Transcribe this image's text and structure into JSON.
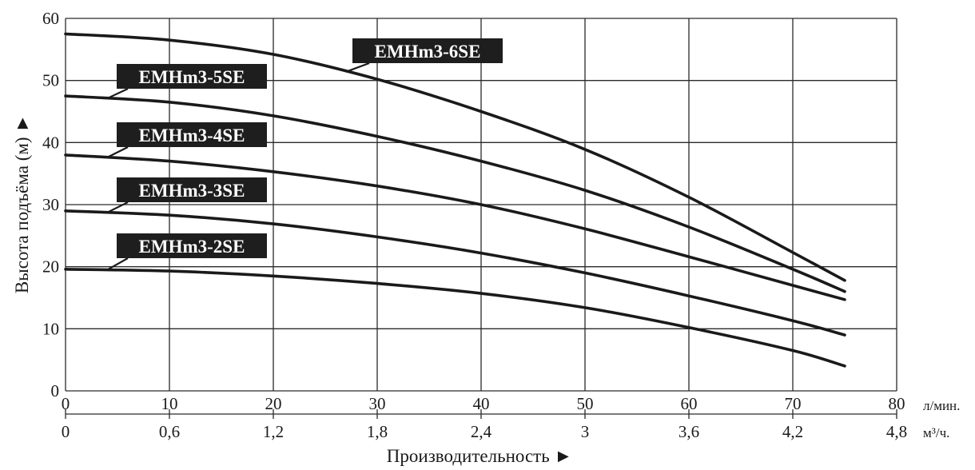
{
  "chart_data": {
    "type": "line",
    "ylabel": "Высота подъёма (м) ►",
    "xlabel": "Производительность ►",
    "x_unit_primary": "л/мин.",
    "x_unit_secondary": "м³/ч.",
    "xlim": [
      0,
      80
    ],
    "ylim": [
      0,
      60
    ],
    "grid": true,
    "x_ticks": [
      "0",
      "10",
      "20",
      "30",
      "40",
      "50",
      "60",
      "70",
      "80"
    ],
    "x_ticks_secondary": [
      "0",
      "0,6",
      "1,2",
      "1,8",
      "2,4",
      "3",
      "3,6",
      "4,2",
      "4,8"
    ],
    "y_ticks": [
      "0",
      "10",
      "20",
      "30",
      "40",
      "50",
      "60"
    ],
    "x": [
      0,
      10,
      20,
      30,
      40,
      50,
      60,
      70,
      75
    ],
    "series": [
      {
        "name": "EMHm3-6SE",
        "values": [
          57.5,
          56.5,
          54.2,
          50.2,
          45.0,
          38.9,
          31.2,
          22.3,
          17.8
        ]
      },
      {
        "name": "EMHm3-5SE",
        "values": [
          47.5,
          46.5,
          44.3,
          41.0,
          37.0,
          32.3,
          26.4,
          19.6,
          16.0
        ]
      },
      {
        "name": "EMHm3-4SE",
        "values": [
          38.0,
          37.0,
          35.3,
          33.0,
          30.0,
          26.1,
          21.6,
          17.0,
          14.7
        ]
      },
      {
        "name": "EMHm3-3SE",
        "values": [
          29.0,
          28.3,
          26.9,
          24.8,
          22.2,
          19.0,
          15.3,
          11.3,
          9.0
        ]
      },
      {
        "name": "EMHm3-2SE",
        "values": [
          19.6,
          19.3,
          18.5,
          17.3,
          15.7,
          13.4,
          10.2,
          6.5,
          4.0
        ]
      }
    ]
  }
}
